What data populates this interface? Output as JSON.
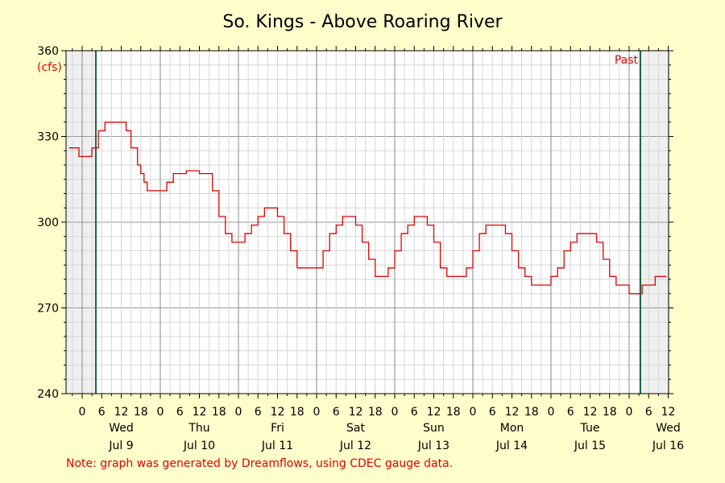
{
  "chart_data": {
    "type": "line",
    "title": "So. Kings - Above Roaring River",
    "y_unit": "(cfs)",
    "past_label": "Past",
    "note": "Note: graph was generated by Dreamflows, using CDEC gauge data.",
    "y_ticks": [
      "360",
      "330",
      "300",
      "270",
      "240"
    ],
    "ylim": [
      240,
      360
    ],
    "grid": true,
    "colors": {
      "series": "#e00000",
      "marker_line": "#1a6a4a",
      "plot_bg": "#ffffff",
      "shaded": "#efefef"
    },
    "days": [
      {
        "weekday": "Wed",
        "date": "Jul 9"
      },
      {
        "weekday": "Thu",
        "date": "Jul 10"
      },
      {
        "weekday": "Fri",
        "date": "Jul 11"
      },
      {
        "weekday": "Sat",
        "date": "Jul 12"
      },
      {
        "weekday": "Sun",
        "date": "Jul 13"
      },
      {
        "weekday": "Mon",
        "date": "Jul 14"
      },
      {
        "weekday": "Tue",
        "date": "Jul 15"
      },
      {
        "weekday": "Wed",
        "date": "Jul 16"
      }
    ],
    "hour_labels": [
      "0",
      "6",
      "12",
      "18"
    ],
    "series": [
      {
        "unit": "cfs",
        "x_hours_from_jul9_0000": [
          -4,
          -1,
          0,
          3,
          5,
          7,
          10,
          12,
          13.5,
          15,
          17,
          18,
          19,
          20,
          21,
          22.5,
          24,
          26,
          28,
          30,
          32,
          34,
          36,
          38,
          40,
          42,
          44,
          46,
          48,
          50,
          52,
          54,
          56,
          58,
          60,
          62,
          64,
          66,
          68,
          70,
          72,
          74,
          76,
          78,
          80,
          82,
          84,
          86,
          88,
          90,
          92,
          94,
          96,
          98,
          100,
          102,
          104,
          106,
          108,
          110,
          112,
          114,
          116,
          118,
          120,
          122,
          124,
          126,
          128,
          130,
          132,
          134,
          136,
          138,
          140,
          142,
          144,
          146,
          148,
          150,
          152,
          154,
          156,
          158,
          160,
          162,
          164,
          166,
          168,
          170,
          172,
          174,
          176,
          178,
          179.5
        ],
        "values": [
          326,
          323,
          323,
          326,
          332,
          335,
          335,
          335,
          332,
          326,
          320,
          317,
          314,
          311,
          311,
          311,
          311,
          314,
          317,
          317,
          318,
          318,
          317,
          317,
          311,
          302,
          296,
          293,
          293,
          296,
          299,
          302,
          305,
          305,
          302,
          296,
          290,
          284,
          284,
          284,
          284,
          290,
          296,
          299,
          302,
          302,
          299,
          293,
          287,
          281,
          281,
          284,
          290,
          296,
          299,
          302,
          302,
          299,
          293,
          284,
          281,
          281,
          281,
          284,
          290,
          296,
          299,
          299,
          299,
          296,
          290,
          284,
          281,
          278,
          278,
          278,
          281,
          284,
          290,
          293,
          296,
          296,
          296,
          293,
          287,
          281,
          278,
          278,
          275,
          275,
          278,
          278,
          281,
          281,
          281
        ]
      }
    ]
  }
}
